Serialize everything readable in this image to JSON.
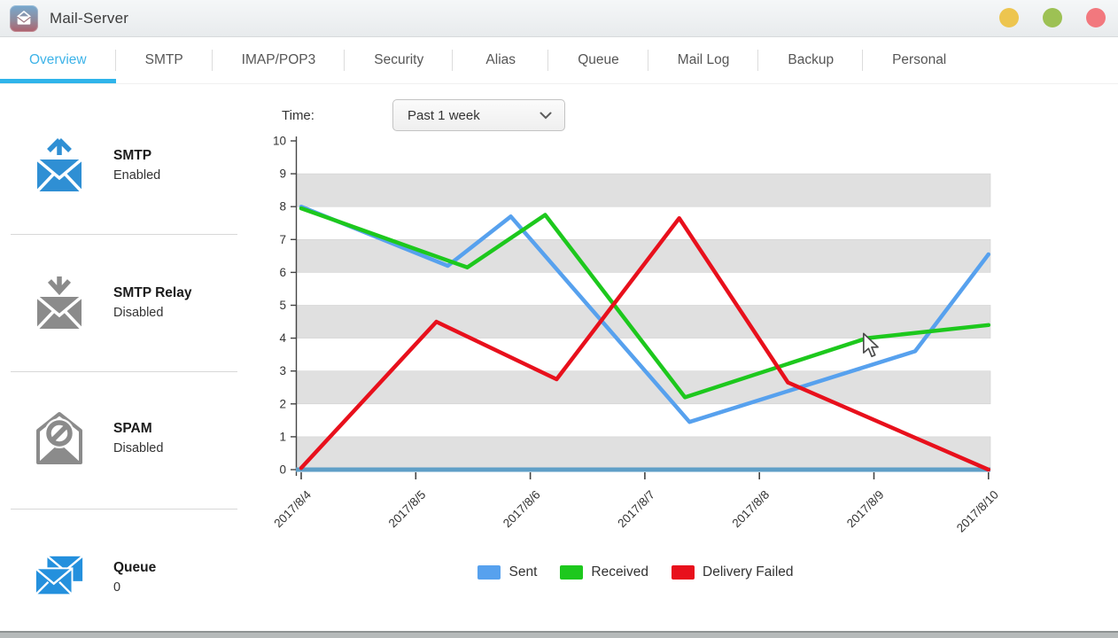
{
  "window": {
    "title": "Mail-Server",
    "controls": [
      {
        "name": "minimize",
        "color": "#edc54f"
      },
      {
        "name": "restore",
        "color": "#9dc154"
      },
      {
        "name": "close",
        "color": "#f2787e"
      }
    ]
  },
  "tabs": {
    "active": "Overview",
    "active_color": "#2fb4ea",
    "items": [
      "Overview",
      "SMTP",
      "IMAP/POP3",
      "Security",
      "Alias",
      "Queue",
      "Mail Log",
      "Backup",
      "Personal"
    ]
  },
  "sidebar": {
    "items": [
      {
        "label": "SMTP",
        "status": "Enabled",
        "icon": "smtp-outgoing-mail-icon",
        "icon_color": "#2f8fd4"
      },
      {
        "label": "SMTP Relay",
        "status": "Disabled",
        "icon": "smtp-relay-incoming-mail-icon",
        "icon_color": "#8b8b8b"
      },
      {
        "label": "SPAM",
        "status": "Disabled",
        "icon": "spam-blocked-mail-icon",
        "icon_color": "#8b8b8b"
      },
      {
        "label": "Queue",
        "status": "0",
        "icon": "queue-mail-stack-icon",
        "icon_color": "#2490dd"
      }
    ]
  },
  "toolbar": {
    "time_label": "Time:",
    "time_value": "Past 1 week"
  },
  "chart_data": {
    "type": "line",
    "title": "",
    "xlabel": "",
    "ylabel": "",
    "ylim": [
      0,
      10
    ],
    "y_ticks": [
      0,
      1,
      2,
      3,
      4,
      5,
      6,
      7,
      8,
      9,
      10
    ],
    "x_tick_labels": [
      "2017/8/4",
      "2017/8/5",
      "2017/8/6",
      "2017/8/7",
      "2017/8/8",
      "2017/8/9",
      "2017/8/10"
    ],
    "x_range_days": [
      0,
      6
    ],
    "grid_bands": [
      [
        0,
        1
      ],
      [
        2,
        3
      ],
      [
        4,
        5
      ],
      [
        6,
        7
      ],
      [
        8,
        9
      ]
    ],
    "band_color": "#e0e0e0",
    "baseline_color": "#5f9fc7",
    "legend_position": "bottom",
    "series": [
      {
        "name": "Sent",
        "color": "#57a1ee",
        "points": [
          [
            0,
            8.0
          ],
          [
            1.28,
            6.2
          ],
          [
            1.83,
            7.7
          ],
          [
            3.39,
            1.45
          ],
          [
            5.36,
            3.6
          ],
          [
            6,
            6.55
          ]
        ]
      },
      {
        "name": "Received",
        "color": "#1dc81d",
        "points": [
          [
            0,
            7.95
          ],
          [
            1.45,
            6.15
          ],
          [
            2.13,
            7.75
          ],
          [
            3.35,
            2.2
          ],
          [
            4.94,
            4.0
          ],
          [
            6,
            4.4
          ]
        ]
      },
      {
        "name": "Delivery Failed",
        "color": "#e8101c",
        "points": [
          [
            0,
            0.05
          ],
          [
            1.18,
            4.5
          ],
          [
            2.23,
            2.75
          ],
          [
            3.3,
            7.65
          ],
          [
            4.25,
            2.65
          ],
          [
            6,
            0.0
          ]
        ]
      }
    ]
  }
}
